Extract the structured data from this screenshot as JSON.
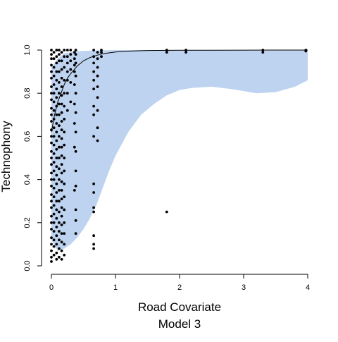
{
  "chart_data": {
    "type": "scatter",
    "title": "",
    "xlabel": "Road Covariate",
    "ylabel": "Technophony",
    "subtitle": "Model 3",
    "xlim": [
      0,
      4
    ],
    "ylim": [
      0,
      1
    ],
    "x_ticks": [
      "0",
      "1",
      "2",
      "3",
      "4"
    ],
    "y_ticks": [
      "0.0",
      "0.2",
      "0.4",
      "0.6",
      "0.8",
      "1.0"
    ],
    "grid": false,
    "legend": "none",
    "colors": {
      "band": "#bed3ef",
      "points": "#000000",
      "curve": "#000000"
    },
    "fitted_curve": {
      "x": [
        0,
        0.05,
        0.1,
        0.15,
        0.2,
        0.25,
        0.3,
        0.4,
        0.5,
        0.6,
        0.7,
        0.8,
        1.0,
        1.2,
        1.5,
        2.0,
        2.5,
        3.0,
        3.5,
        4.0
      ],
      "y": [
        0.62,
        0.7,
        0.76,
        0.8,
        0.84,
        0.87,
        0.89,
        0.925,
        0.95,
        0.965,
        0.975,
        0.983,
        0.991,
        0.995,
        0.998,
        0.999,
        0.9995,
        0.9998,
        0.9999,
        1.0
      ]
    },
    "confidence_band": {
      "x": [
        0,
        0.1,
        0.2,
        0.3,
        0.4,
        0.5,
        0.6,
        0.7,
        0.8,
        0.9,
        1.0,
        1.2,
        1.4,
        1.6,
        1.8,
        2.0,
        2.2,
        2.5,
        2.8,
        3.0,
        3.2,
        3.5,
        3.8,
        4.0
      ],
      "lower": [
        0.12,
        0.07,
        0.08,
        0.1,
        0.13,
        0.17,
        0.22,
        0.28,
        0.36,
        0.44,
        0.51,
        0.62,
        0.7,
        0.75,
        0.79,
        0.815,
        0.825,
        0.83,
        0.82,
        0.81,
        0.8,
        0.805,
        0.83,
        0.86
      ],
      "upper": [
        0.92,
        0.96,
        0.985,
        0.99,
        0.995,
        0.996,
        0.997,
        0.998,
        0.999,
        0.999,
        1.0,
        1.0,
        1.0,
        1.0,
        1.0,
        1.0,
        1.0,
        1.0,
        1.0,
        1.0,
        1.0,
        1.0,
        1.0,
        1.0
      ]
    },
    "point_groups": [
      {
        "x": 0.0,
        "y": [
          0.02,
          0.04,
          0.07,
          0.1,
          0.13,
          0.17,
          0.2,
          0.23,
          0.27,
          0.3,
          0.33,
          0.37,
          0.4,
          0.43,
          0.47,
          0.5,
          0.53,
          0.57,
          0.6,
          0.63,
          0.67,
          0.7,
          0.73,
          0.77,
          0.8,
          0.83,
          0.87,
          0.9,
          0.93,
          0.96,
          0.98,
          1.0
        ]
      },
      {
        "x": 0.04,
        "y": [
          0.05,
          0.09,
          0.12,
          0.16,
          0.2,
          0.24,
          0.28,
          0.32,
          0.36,
          0.4,
          0.44,
          0.48,
          0.52,
          0.56,
          0.6,
          0.64,
          0.68,
          0.72,
          0.76,
          0.8,
          0.84,
          0.88,
          0.92,
          0.96,
          0.99
        ]
      },
      {
        "x": 0.08,
        "y": [
          0.03,
          0.06,
          0.1,
          0.14,
          0.18,
          0.22,
          0.26,
          0.3,
          0.34,
          0.38,
          0.42,
          0.46,
          0.5,
          0.54,
          0.58,
          0.62,
          0.66,
          0.7,
          0.74,
          0.78,
          0.82,
          0.86,
          0.9,
          0.94,
          0.97,
          1.0
        ]
      },
      {
        "x": 0.12,
        "y": [
          0.04,
          0.08,
          0.12,
          0.16,
          0.2,
          0.25,
          0.3,
          0.35,
          0.4,
          0.45,
          0.5,
          0.55,
          0.6,
          0.65,
          0.7,
          0.75,
          0.8,
          0.85,
          0.9,
          0.95,
          0.98,
          1.0
        ]
      },
      {
        "x": 0.16,
        "y": [
          0.03,
          0.07,
          0.11,
          0.15,
          0.19,
          0.23,
          0.27,
          0.31,
          0.35,
          0.39,
          0.43,
          0.47,
          0.51,
          0.55,
          0.59,
          0.63,
          0.67,
          0.71,
          0.75,
          0.79,
          0.83,
          0.87,
          0.91,
          0.95,
          0.99
        ]
      },
      {
        "x": 0.2,
        "y": [
          0.05,
          0.1,
          0.15,
          0.2,
          0.26,
          0.32,
          0.38,
          0.44,
          0.5,
          0.56,
          0.62,
          0.68,
          0.74,
          0.8,
          0.86,
          0.92,
          0.97,
          1.0
        ]
      },
      {
        "x": 0.25,
        "y": [
          0.72,
          0.8,
          0.86,
          0.9,
          0.94,
          0.97,
          1.0
        ]
      },
      {
        "x": 0.3,
        "y": [
          0.76,
          0.85,
          0.91,
          0.95,
          0.98,
          1.0
        ]
      },
      {
        "x": 0.36,
        "y": [
          0.35,
          0.55,
          0.66,
          0.75,
          0.84,
          0.9,
          0.93,
          0.96,
          0.99
        ]
      },
      {
        "x": 0.38,
        "y": [
          0.15,
          0.21,
          0.26,
          0.37,
          0.44,
          0.53,
          0.62,
          0.71,
          0.8,
          0.88,
          0.94,
          0.98,
          1.0
        ]
      },
      {
        "x": 0.66,
        "y": [
          0.08,
          0.1,
          0.14,
          0.25,
          0.27,
          0.34,
          0.38,
          0.6,
          0.7,
          0.74,
          0.82,
          0.86,
          0.9,
          0.94,
          0.97,
          1.0
        ]
      },
      {
        "x": 0.72,
        "y": [
          0.58,
          0.64,
          0.72,
          0.78,
          0.83,
          0.88,
          0.92,
          0.96,
          0.99
        ]
      },
      {
        "x": 0.78,
        "y": [
          0.97,
          0.99,
          1.0
        ]
      },
      {
        "x": 1.8,
        "y": [
          0.25,
          0.99,
          1.0
        ]
      },
      {
        "x": 2.1,
        "y": [
          0.99,
          1.0
        ]
      },
      {
        "x": 3.3,
        "y": [
          0.99,
          1.0
        ]
      },
      {
        "x": 3.97,
        "y": [
          0.995,
          1.0
        ]
      }
    ]
  }
}
